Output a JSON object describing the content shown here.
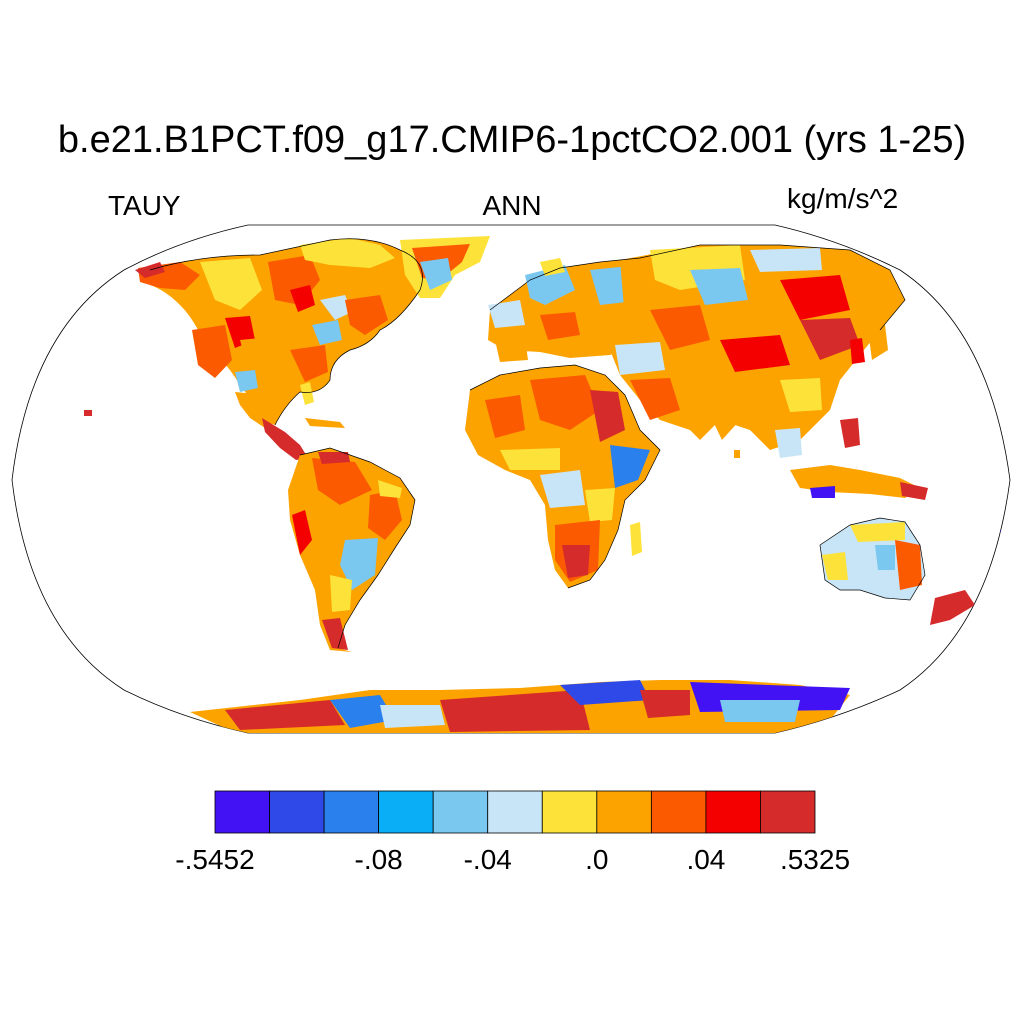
{
  "map": {
    "title": "b.e21.B1PCT.f09_g17.CMIP6-1pctCO2.001 (yrs 1-25)",
    "left_label": "TAUY",
    "center_label": "ANN",
    "right_label": "kg/m/s^2",
    "projection": "Robinson",
    "ocean_fill": "#ffffff",
    "continent_outline": "#000000"
  },
  "colorbar": {
    "colors": [
      "#4212f5",
      "#2e49e8",
      "#2a80ec",
      "#0aaef6",
      "#7ac7f0",
      "#c8e5f7",
      "#fde23a",
      "#fca300",
      "#fb5a00",
      "#f40000",
      "#d62b2b"
    ],
    "tick_labels": [
      {
        "label": ".5452",
        "prefix": "-",
        "edge": 0
      },
      {
        "label": "-.08",
        "prefix": "",
        "edge": 3
      },
      {
        "label": "-.04",
        "prefix": "",
        "edge": 5
      },
      {
        "label": ".0",
        "prefix": "",
        "edge": 7
      },
      {
        "label": ".04",
        "prefix": "",
        "edge": 9
      },
      {
        "label": ".5325",
        "prefix": "",
        "edge": 11
      }
    ]
  }
}
